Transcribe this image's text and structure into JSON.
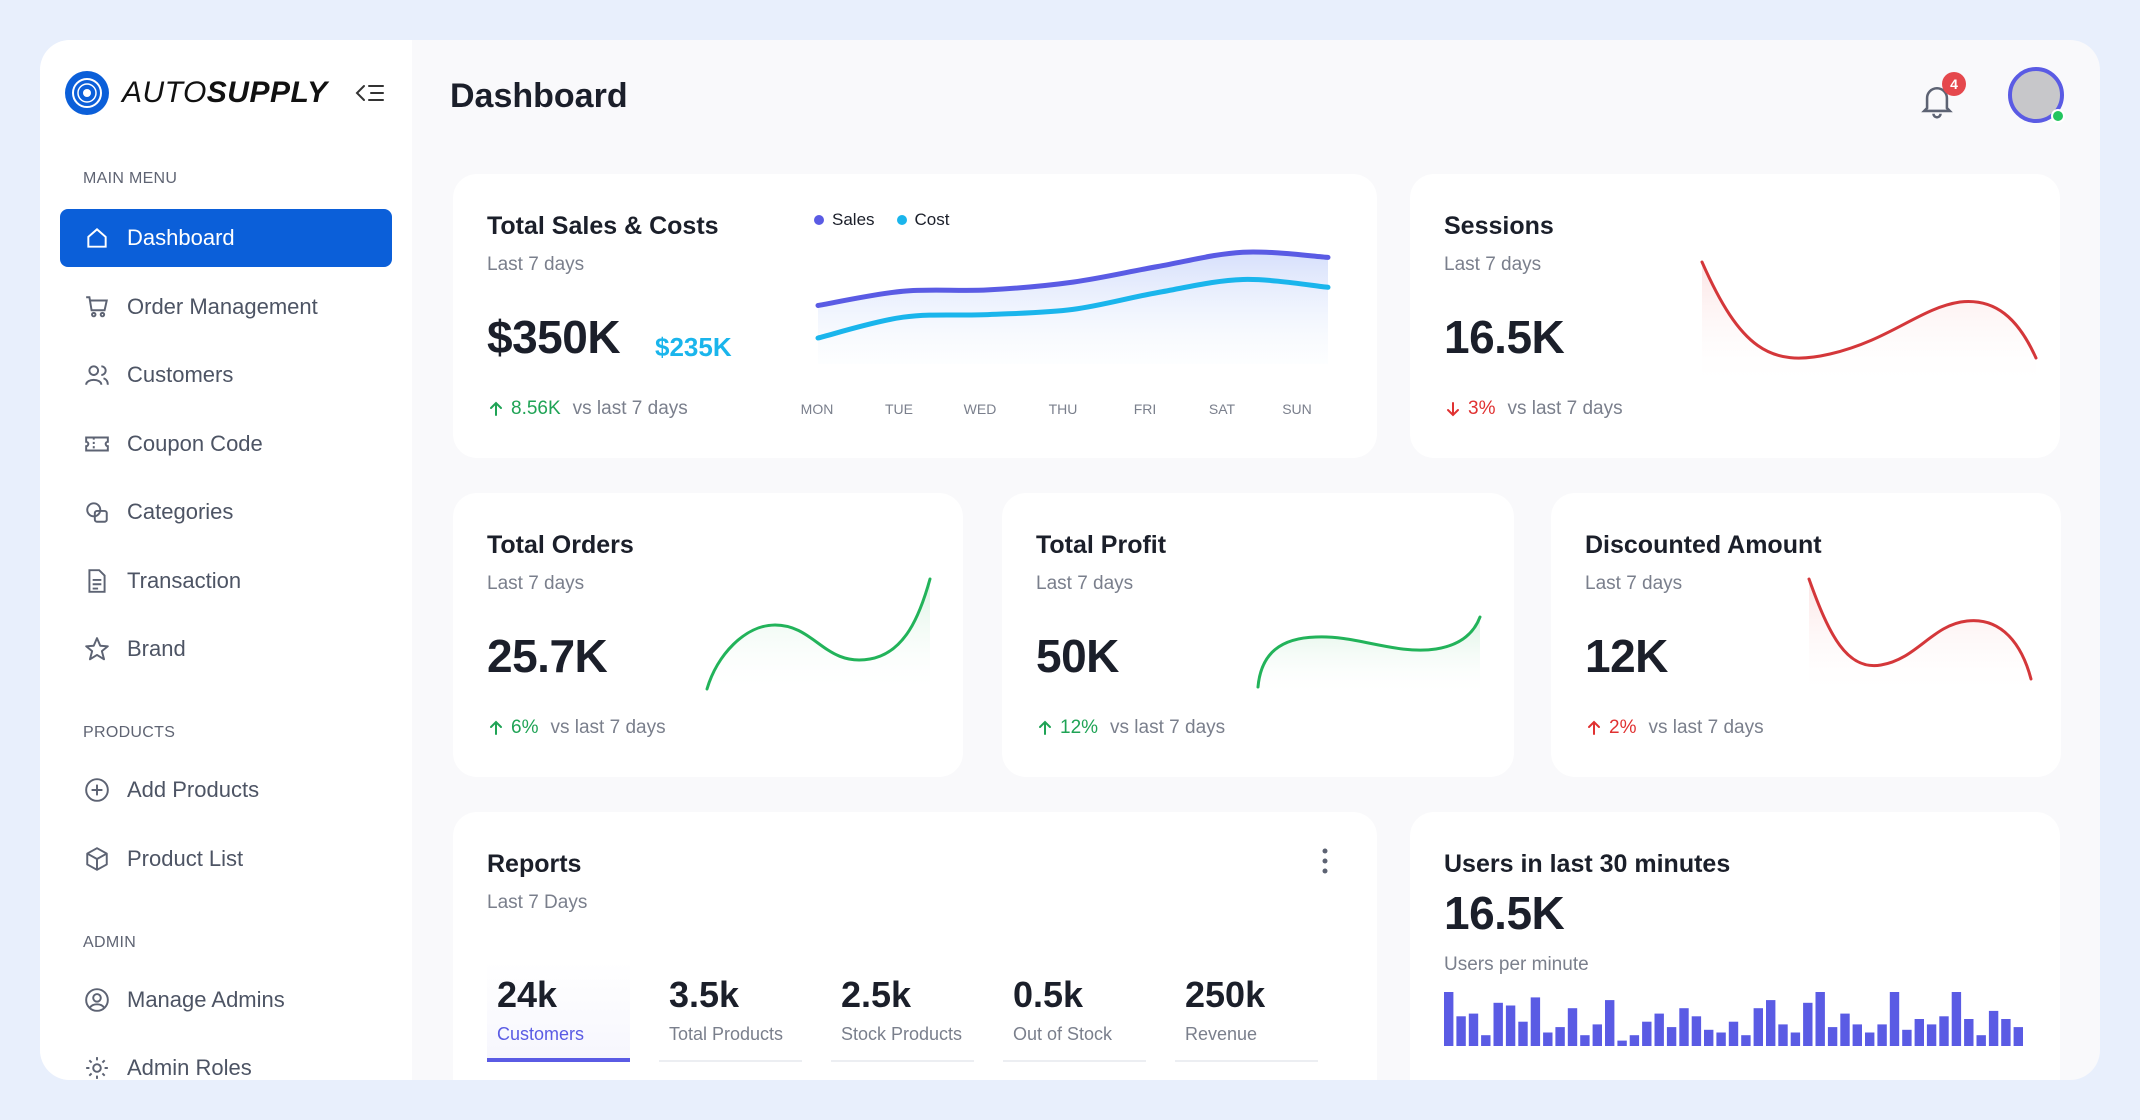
{
  "brand": {
    "name_thin": "AUTO",
    "name_bold": "SUPPLY"
  },
  "sidebar": {
    "section_main": "MAIN MENU",
    "section_products": "PRODUCTS",
    "section_admin": "ADMIN",
    "items": [
      {
        "label": "Dashboard",
        "icon": "home-icon",
        "active": true
      },
      {
        "label": "Order Management",
        "icon": "cart-icon"
      },
      {
        "label": "Customers",
        "icon": "users-icon"
      },
      {
        "label": "Coupon Code",
        "icon": "ticket-icon"
      },
      {
        "label": "Categories",
        "icon": "categories-icon"
      },
      {
        "label": "Transaction",
        "icon": "document-icon"
      },
      {
        "label": "Brand",
        "icon": "star-icon"
      },
      {
        "label": "Add Products",
        "icon": "plus-circle-icon"
      },
      {
        "label": "Product List",
        "icon": "box-icon"
      },
      {
        "label": "Manage Admins",
        "icon": "user-circle-icon"
      },
      {
        "label": "Admin Roles",
        "icon": "gear-icon"
      }
    ]
  },
  "header": {
    "title": "Dashboard",
    "notification_count": "4"
  },
  "colors": {
    "accent": "#0b5fd9",
    "sales": "#5a5be4",
    "cost": "#1ab5ec",
    "up": "#1fa355",
    "down": "#e03131",
    "green_line": "#22b35a",
    "red_line": "#d4373a"
  },
  "sales_costs": {
    "title": "Total Sales & Costs",
    "subtitle": "Last 7 days",
    "value": "$350K",
    "secondary_value": "$235K",
    "delta": "8.56K",
    "delta_direction": "up",
    "compare": "vs last 7 days",
    "legend": [
      "Sales",
      "Cost"
    ],
    "days": [
      "MON",
      "TUE",
      "WED",
      "THU",
      "FRI",
      "SAT",
      "SUN"
    ]
  },
  "sessions": {
    "title": "Sessions",
    "subtitle": "Last 7 days",
    "value": "16.5K",
    "delta": "3%",
    "delta_direction": "down",
    "compare": "vs last 7 days"
  },
  "orders": {
    "title": "Total Orders",
    "subtitle": "Last 7 days",
    "value": "25.7K",
    "delta": "6%",
    "delta_direction": "up",
    "compare": "vs last 7 days"
  },
  "profit": {
    "title": "Total Profit",
    "subtitle": "Last 7 days",
    "value": "50K",
    "delta": "12%",
    "delta_direction": "up",
    "compare": "vs last 7 days"
  },
  "discounted": {
    "title": "Discounted Amount",
    "subtitle": "Last 7 days",
    "value": "12K",
    "delta": "2%",
    "delta_direction": "up",
    "compare": "vs last 7 days"
  },
  "reports": {
    "title": "Reports",
    "subtitle": "Last 7 Days",
    "tabs": [
      {
        "value": "24k",
        "label": "Customers",
        "active": true
      },
      {
        "value": "3.5k",
        "label": "Total Products"
      },
      {
        "value": "2.5k",
        "label": "Stock Products"
      },
      {
        "value": "0.5k",
        "label": "Out of Stock"
      },
      {
        "value": "250k",
        "label": "Revenue"
      }
    ]
  },
  "users": {
    "title": "Users in last 30 minutes",
    "value": "16.5K",
    "subtitle": "Users per minute"
  },
  "chart_data": [
    {
      "type": "area",
      "categories": [
        "MON",
        "TUE",
        "WED",
        "THU",
        "FRI",
        "SAT",
        "SUN"
      ],
      "series": [
        {
          "name": "Sales",
          "values": [
            45,
            56,
            57,
            63,
            75,
            86,
            82
          ]
        },
        {
          "name": "Cost",
          "values": [
            20,
            36,
            38,
            42,
            55,
            65,
            59
          ]
        }
      ],
      "ylim": [
        0,
        100
      ],
      "legend": "top"
    },
    {
      "type": "bar",
      "values": [
        100,
        55,
        60,
        20,
        80,
        75,
        45,
        90,
        25,
        35,
        70,
        20,
        40,
        85,
        10,
        20,
        45,
        60,
        35,
        70,
        55,
        30,
        25,
        45,
        20,
        70,
        85,
        40,
        25,
        80,
        100,
        35,
        60,
        40,
        25,
        40,
        100,
        30,
        50,
        40,
        55,
        100,
        50,
        20,
        65,
        50,
        35
      ]
    }
  ]
}
